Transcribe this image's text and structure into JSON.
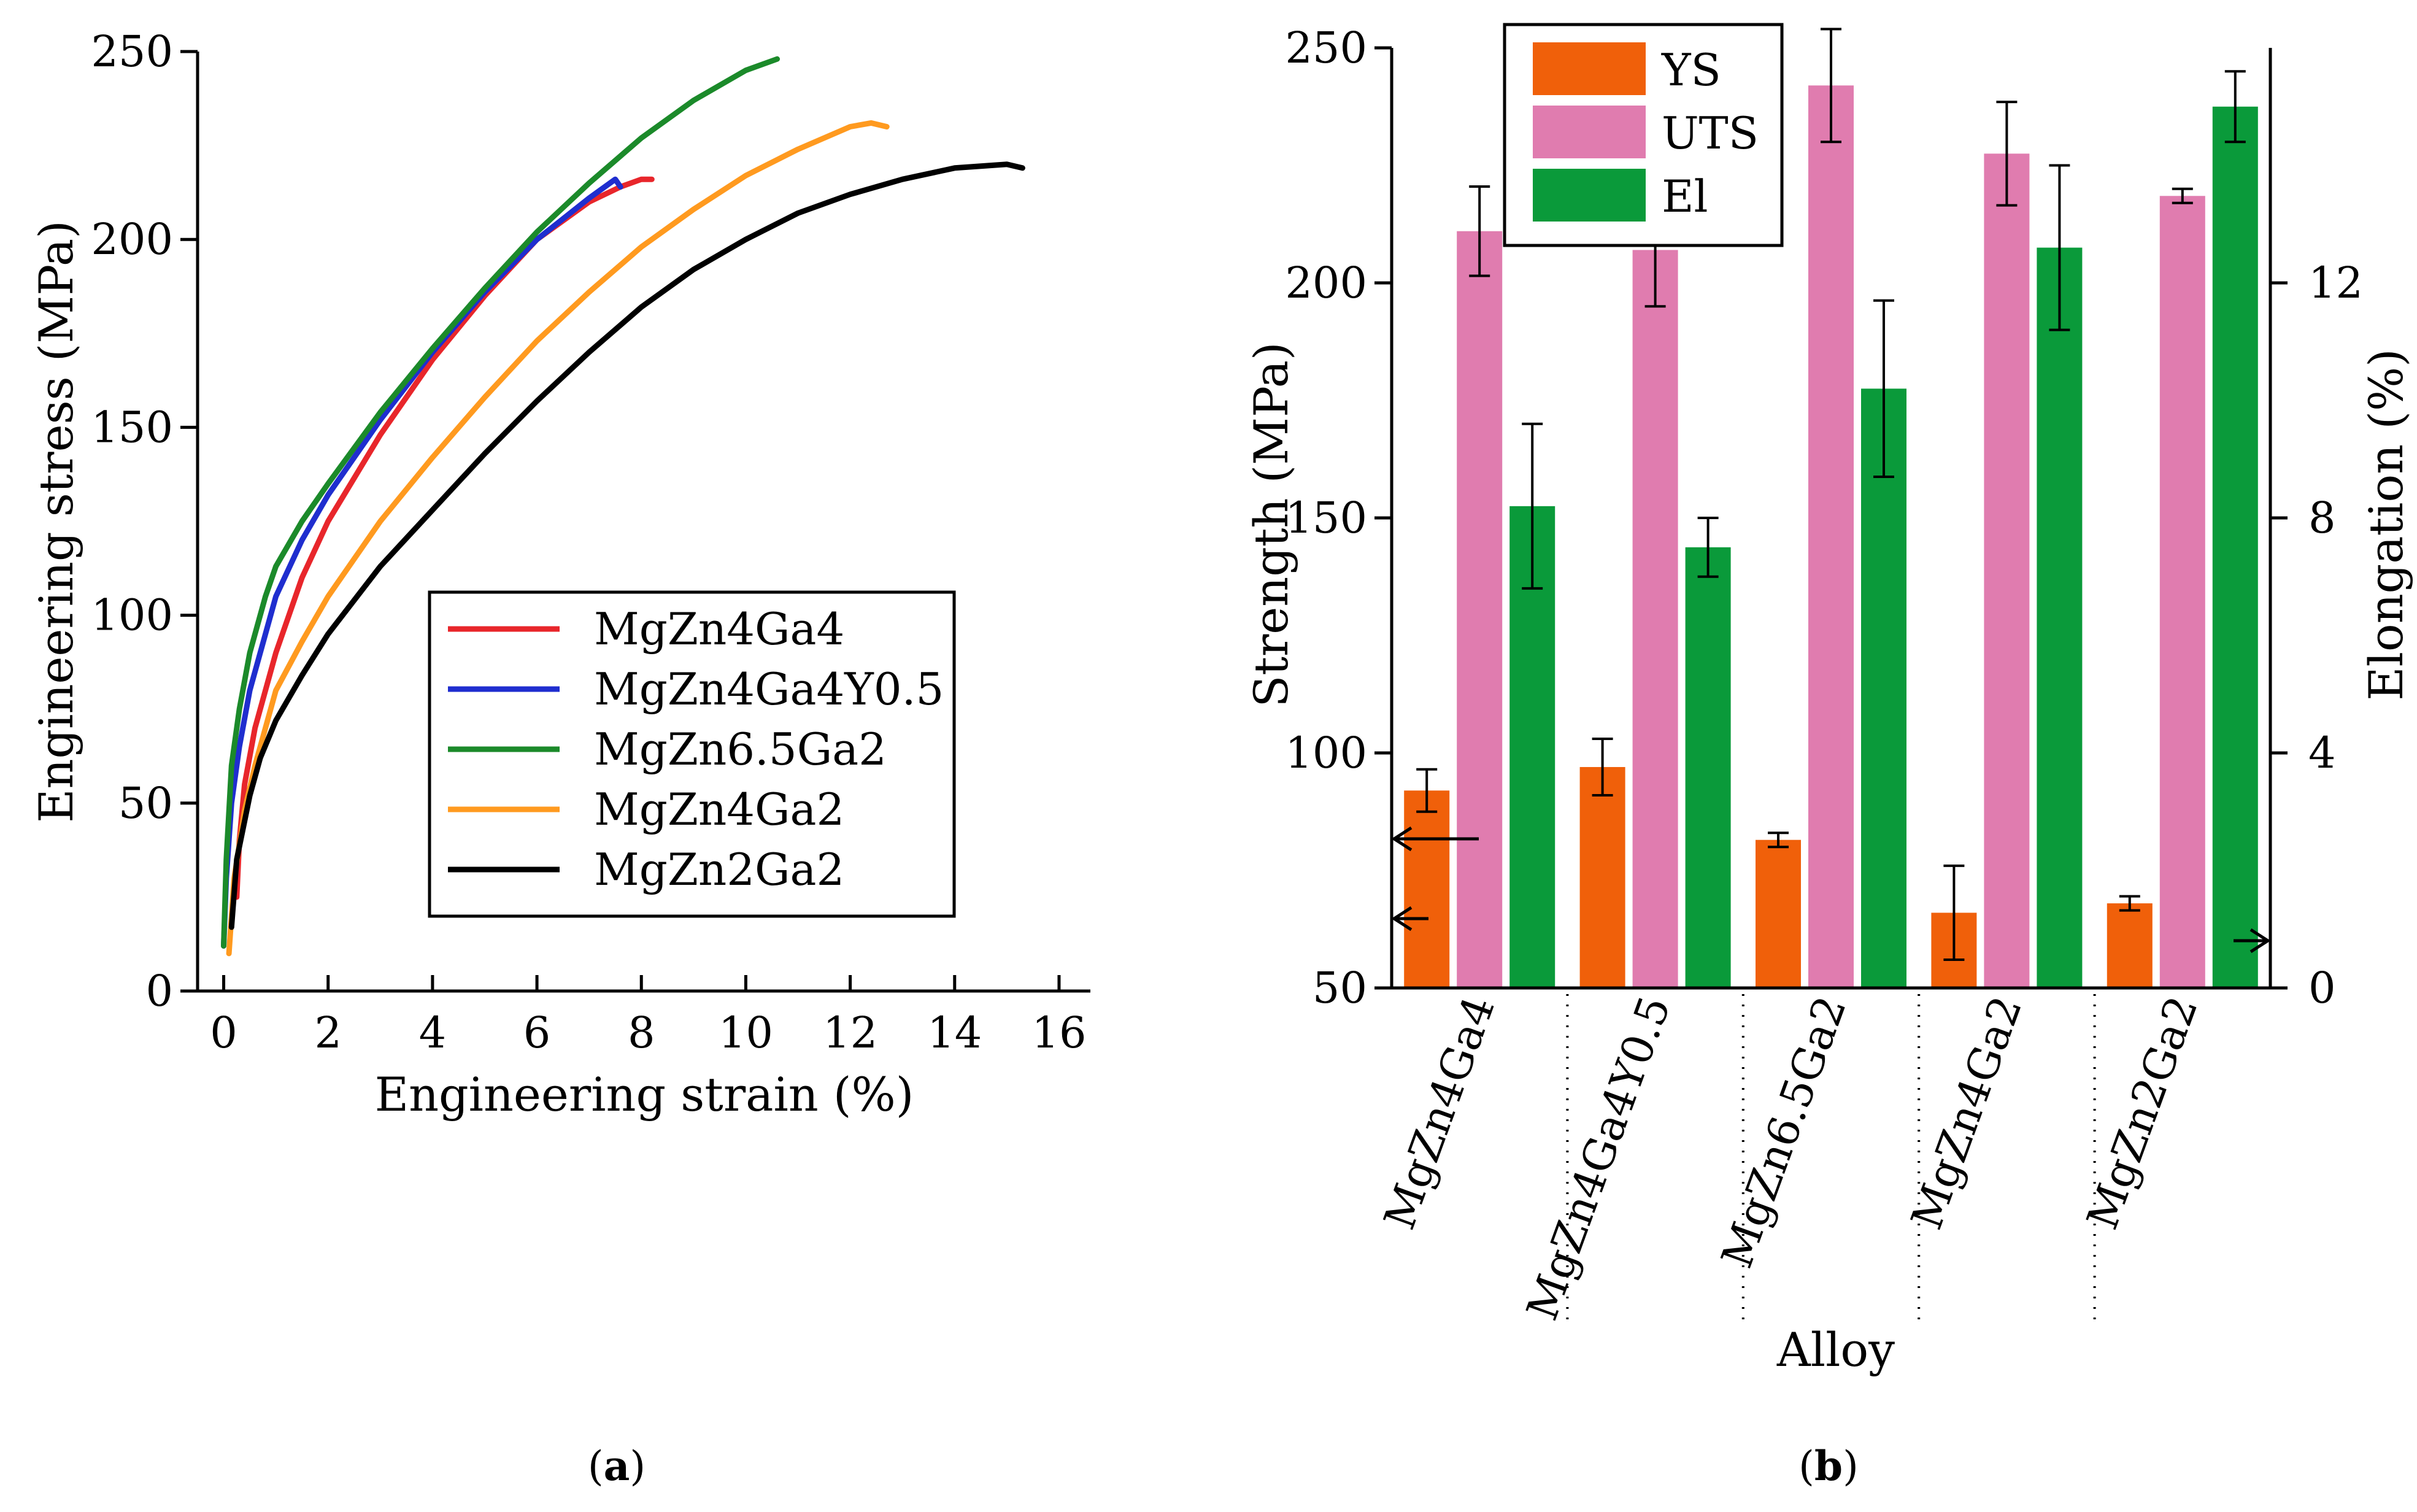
{
  "colors": {
    "MgZn4Ga4": "#e8262b",
    "MgZn4Ga4Y0.5": "#1f2ecf",
    "MgZn6.5Ga2": "#1b8a2a",
    "MgZn4Ga2": "#ff9a1f",
    "MgZn2Ga2": "#000000",
    "YS": "#f0600a",
    "UTS": "#e07caf",
    "El": "#0a9a3a"
  },
  "panel_labels": {
    "a": "a",
    "b": "b"
  },
  "chart_data": [
    {
      "type": "line",
      "id": "a",
      "xlabel": "Engineering strain (%)",
      "ylabel": "Engineering stress (MPa)",
      "xlim": [
        -0.5,
        16.6
      ],
      "ylim": [
        0,
        250
      ],
      "xticks": [
        0,
        2,
        4,
        6,
        8,
        10,
        12,
        14,
        16
      ],
      "yticks": [
        0,
        50,
        100,
        150,
        200,
        250
      ],
      "legend_position": "center-right",
      "series": [
        {
          "name": "MgZn4Ga4",
          "x": [
            0.25,
            0.3,
            0.4,
            0.6,
            0.8,
            1.0,
            1.5,
            2.0,
            3.0,
            4.0,
            5.0,
            6.0,
            7.0,
            7.6,
            8.0,
            8.2
          ],
          "y": [
            25,
            40,
            55,
            70,
            80,
            90,
            110,
            125,
            148,
            168,
            185,
            200,
            210,
            214,
            216,
            216
          ]
        },
        {
          "name": "MgZn4Ga4Y0.5",
          "x": [
            0.0,
            0.05,
            0.15,
            0.3,
            0.5,
            0.8,
            1.0,
            1.5,
            2.0,
            3.0,
            4.0,
            5.0,
            6.0,
            7.0,
            7.5,
            7.6
          ],
          "y": [
            12,
            30,
            50,
            65,
            80,
            95,
            105,
            120,
            132,
            152,
            170,
            186,
            200,
            211,
            216,
            214
          ]
        },
        {
          "name": "MgZn6.5Ga2",
          "x": [
            0.0,
            0.05,
            0.15,
            0.3,
            0.5,
            0.8,
            1.0,
            1.5,
            2.0,
            3.0,
            4.0,
            5.0,
            6.0,
            7.0,
            8.0,
            9.0,
            10.0,
            10.6
          ],
          "y": [
            12,
            35,
            60,
            75,
            90,
            105,
            113,
            125,
            135,
            154,
            171,
            187,
            202,
            215,
            227,
            237,
            245,
            248
          ]
        },
        {
          "name": "MgZn4Ga2",
          "x": [
            0.1,
            0.2,
            0.4,
            0.6,
            0.8,
            1.0,
            1.5,
            2.0,
            3.0,
            4.0,
            5.0,
            6.0,
            7.0,
            8.0,
            9.0,
            10.0,
            11.0,
            12.0,
            12.4,
            12.7
          ],
          "y": [
            10,
            30,
            48,
            60,
            70,
            80,
            93,
            105,
            125,
            142,
            158,
            173,
            186,
            198,
            208,
            217,
            224,
            230,
            231,
            230
          ]
        },
        {
          "name": "MgZn2Ga2",
          "x": [
            0.15,
            0.25,
            0.5,
            0.7,
            1.0,
            1.5,
            2.0,
            3.0,
            4.0,
            5.0,
            6.0,
            7.0,
            8.0,
            9.0,
            10.0,
            11.0,
            12.0,
            13.0,
            14.0,
            15.0,
            15.3
          ],
          "y": [
            17,
            35,
            52,
            62,
            72,
            84,
            95,
            113,
            128,
            143,
            157,
            170,
            182,
            192,
            200,
            207,
            212,
            216,
            219,
            220,
            219
          ]
        }
      ]
    },
    {
      "type": "bar",
      "id": "b",
      "xlabel": "Alloy",
      "ylabel": "Strength (MPa)",
      "y2label": "Elongation (%)",
      "ylim": [
        50,
        250
      ],
      "y2lim": [
        0,
        16
      ],
      "yticks": [
        50,
        100,
        150,
        200,
        250
      ],
      "y2ticks": [
        0,
        4,
        8,
        12
      ],
      "legend_position": "top-left",
      "categories": [
        "MgZn4Ga4",
        "MgZn4Ga4Y0.5",
        "MgZn6.5Ga2",
        "MgZn4Ga2",
        "MgZn2Ga2"
      ],
      "series": [
        {
          "name": "YS",
          "axis": "left",
          "values": [
            92,
            97,
            81.5,
            66,
            68
          ],
          "errors": [
            4.5,
            6,
            1.5,
            10,
            1.5
          ]
        },
        {
          "name": "UTS",
          "axis": "left",
          "values": [
            211,
            207,
            242,
            227.5,
            218.5
          ],
          "errors": [
            9.5,
            12,
            12,
            11,
            1.5
          ]
        },
        {
          "name": "El",
          "axis": "right",
          "values": [
            8.2,
            7.5,
            10.2,
            12.6,
            15.0
          ],
          "errors": [
            1.4,
            0.5,
            1.5,
            1.4,
            0.6
          ]
        }
      ]
    }
  ]
}
